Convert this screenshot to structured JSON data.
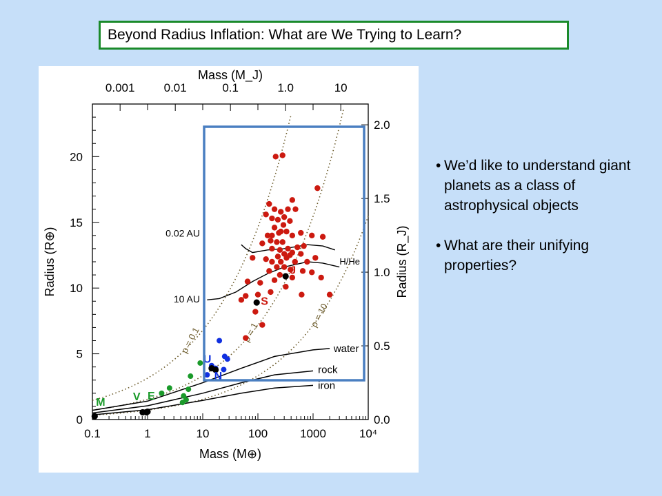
{
  "slide": {
    "title": "Beyond Radius Inflation:  What are We Trying to Learn?",
    "bullets": [
      "We’d like to understand giant planets as a class of astrophysical objects",
      "What are their unifying properties?"
    ],
    "bullet_glyph": "•",
    "highlight_box_color": "#4a7fc1",
    "title_border_color": "#1a8a2a",
    "background_color": "#c6dff9"
  },
  "chart_data": {
    "type": "scatter",
    "x_scale": "log",
    "xlabel": "Mass (M⊕)",
    "xlabel_top": "Mass (M_J)",
    "ylabel": "Radius (R⊕)",
    "ylabel_right": "Radius (R_J)",
    "xlim": [
      0.1,
      10000
    ],
    "ylim": [
      0,
      24
    ],
    "x_ticks": [
      "0.1",
      "1",
      "10",
      "100",
      "1000",
      "10⁴"
    ],
    "x_ticks_top": [
      "0.001",
      "0.01",
      "0.1",
      "1.0",
      "10"
    ],
    "y_ticks": [
      "0",
      "5",
      "10",
      "15",
      "20"
    ],
    "y_ticks_right": [
      "0.0",
      "0.5",
      "1.0",
      "1.5",
      "2.0"
    ],
    "colors": {
      "giant": "#cc1a10",
      "ice": "#1030e0",
      "small": "#1a9a2a",
      "solar": "#000000",
      "curve": "#000000",
      "density": "#6b5a2a"
    },
    "planet_labels": [
      {
        "label": "M",
        "mass": 0.11,
        "radius": 0.53,
        "color": "#1a9a2a"
      },
      {
        "label": "V",
        "mass": 0.815,
        "radius": 0.95,
        "color": "#1a9a2a"
      },
      {
        "label": "E",
        "mass": 1.0,
        "radius": 1.0,
        "color": "#1a9a2a"
      },
      {
        "label": "U",
        "mass": 14.5,
        "radius": 4.0,
        "color": "#1030e0"
      },
      {
        "label": "N",
        "mass": 17.1,
        "radius": 3.88,
        "color": "#1030e0"
      },
      {
        "label": "S",
        "mass": 95,
        "radius": 9.14,
        "color": "#cc1a10"
      },
      {
        "label": "J",
        "mass": 318,
        "radius": 11.2,
        "color": "#cc1a10"
      }
    ],
    "curve_labels": [
      "0.02 AU",
      "10 AU",
      "H/He",
      "water",
      "rock",
      "iron",
      "ρ = 0.1",
      "ρ = 1",
      "ρ = 10"
    ],
    "series": [
      {
        "name": "giant",
        "points": [
          [
            210,
            20.0
          ],
          [
            280,
            20.1
          ],
          [
            1200,
            17.6
          ],
          [
            160,
            16.4
          ],
          [
            420,
            16.7
          ],
          [
            200,
            16.0
          ],
          [
            260,
            15.8
          ],
          [
            350,
            16.0
          ],
          [
            480,
            16.0
          ],
          [
            140,
            15.6
          ],
          [
            180,
            15.3
          ],
          [
            230,
            15.2
          ],
          [
            300,
            15.4
          ],
          [
            380,
            15.1
          ],
          [
            290,
            14.8
          ],
          [
            200,
            14.6
          ],
          [
            260,
            14.3
          ],
          [
            330,
            14.3
          ],
          [
            150,
            14.0
          ],
          [
            180,
            14.0
          ],
          [
            240,
            14.2
          ],
          [
            420,
            14.0
          ],
          [
            600,
            14.2
          ],
          [
            950,
            14.0
          ],
          [
            1500,
            13.9
          ],
          [
            120,
            13.4
          ],
          [
            170,
            13.6
          ],
          [
            220,
            13.5
          ],
          [
            280,
            13.5
          ],
          [
            350,
            13.0
          ],
          [
            520,
            13.1
          ],
          [
            680,
            13.2
          ],
          [
            180,
            13.0
          ],
          [
            250,
            12.9
          ],
          [
            300,
            12.6
          ],
          [
            420,
            12.7
          ],
          [
            230,
            12.4
          ],
          [
            380,
            12.5
          ],
          [
            600,
            12.6
          ],
          [
            1100,
            12.3
          ],
          [
            80,
            12.3
          ],
          [
            140,
            12.2
          ],
          [
            180,
            12.0
          ],
          [
            260,
            12.0
          ],
          [
            330,
            12.3
          ],
          [
            470,
            12.0
          ],
          [
            780,
            12.0
          ],
          [
            220,
            11.6
          ],
          [
            300,
            11.6
          ],
          [
            390,
            11.4
          ],
          [
            650,
            11.3
          ],
          [
            950,
            11.2
          ],
          [
            160,
            11.3
          ],
          [
            250,
            11.0
          ],
          [
            420,
            10.8
          ],
          [
            1400,
            10.8
          ],
          [
            65,
            10.5
          ],
          [
            110,
            10.4
          ],
          [
            200,
            10.6
          ],
          [
            320,
            10.1
          ],
          [
            100,
            9.5
          ],
          [
            170,
            9.7
          ],
          [
            620,
            9.5
          ],
          [
            2000,
            9.5
          ],
          [
            50,
            9.1
          ],
          [
            60,
            9.4
          ],
          [
            90,
            8.2
          ],
          [
            120,
            7.2
          ],
          [
            60,
            6.2
          ]
        ]
      },
      {
        "name": "ice",
        "points": [
          [
            20,
            6.0
          ],
          [
            25,
            4.8
          ],
          [
            28,
            4.6
          ],
          [
            24,
            3.8
          ],
          [
            14.5,
            4.1
          ],
          [
            17.1,
            3.9
          ],
          [
            12,
            3.4
          ]
        ]
      },
      {
        "name": "small",
        "points": [
          [
            9,
            4.3
          ],
          [
            6,
            3.3
          ],
          [
            5.5,
            2.3
          ],
          [
            2.5,
            2.4
          ],
          [
            1.8,
            2.0
          ],
          [
            4.5,
            1.8
          ],
          [
            4.3,
            1.3
          ],
          [
            5,
            1.5
          ]
        ]
      },
      {
        "name": "solar",
        "points": [
          [
            0.11,
            0.25
          ],
          [
            0.815,
            0.55
          ],
          [
            1.0,
            0.6
          ],
          [
            0.95,
            0.55
          ],
          [
            14.5,
            3.9
          ],
          [
            17.1,
            3.78
          ],
          [
            95,
            8.9
          ],
          [
            318,
            10.9
          ]
        ]
      }
    ]
  }
}
